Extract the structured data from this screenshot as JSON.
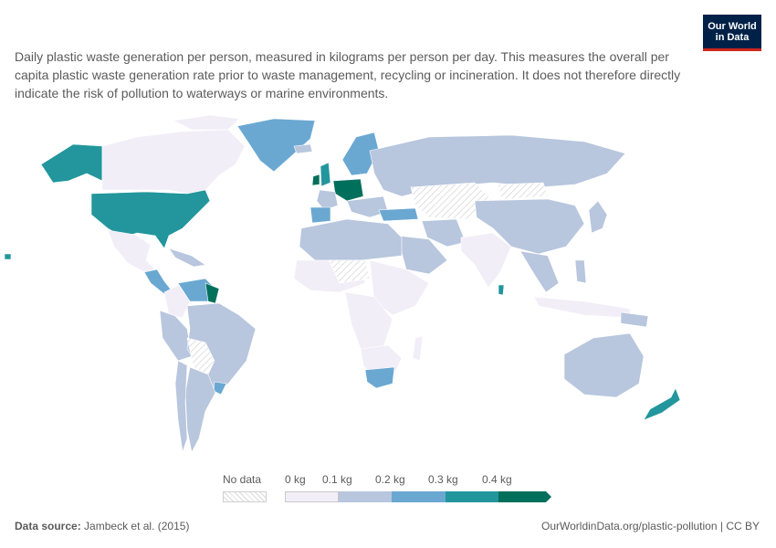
{
  "subtitle": "Daily plastic waste generation per person, measured in kilograms per person per day. This measures the overall per capita plastic waste generation rate prior to waste management, recycling or incineration. It does not therefore directly indicate the risk of pollution to waterways or marine environments.",
  "logo": {
    "line1": "Our World",
    "line2": "in Data"
  },
  "colors": {
    "no_data": "#e8e8e8",
    "bin_0_01": "#f2eef7",
    "bin_01_02": "#b8c6de",
    "bin_02_03": "#6aa8d2",
    "bin_03_04": "#22969c",
    "bin_04_plus": "#00705c"
  },
  "legend": {
    "no_data": "No data",
    "ticks": [
      "0 kg",
      "0.1 kg",
      "0.2 kg",
      "0.3 kg",
      "0.4 kg"
    ]
  },
  "footer": {
    "source_label": "Data source:",
    "source_text": "Jambeck et al. (2015)",
    "url": "OurWorldinData.org/plastic-pollution | CC BY"
  }
}
